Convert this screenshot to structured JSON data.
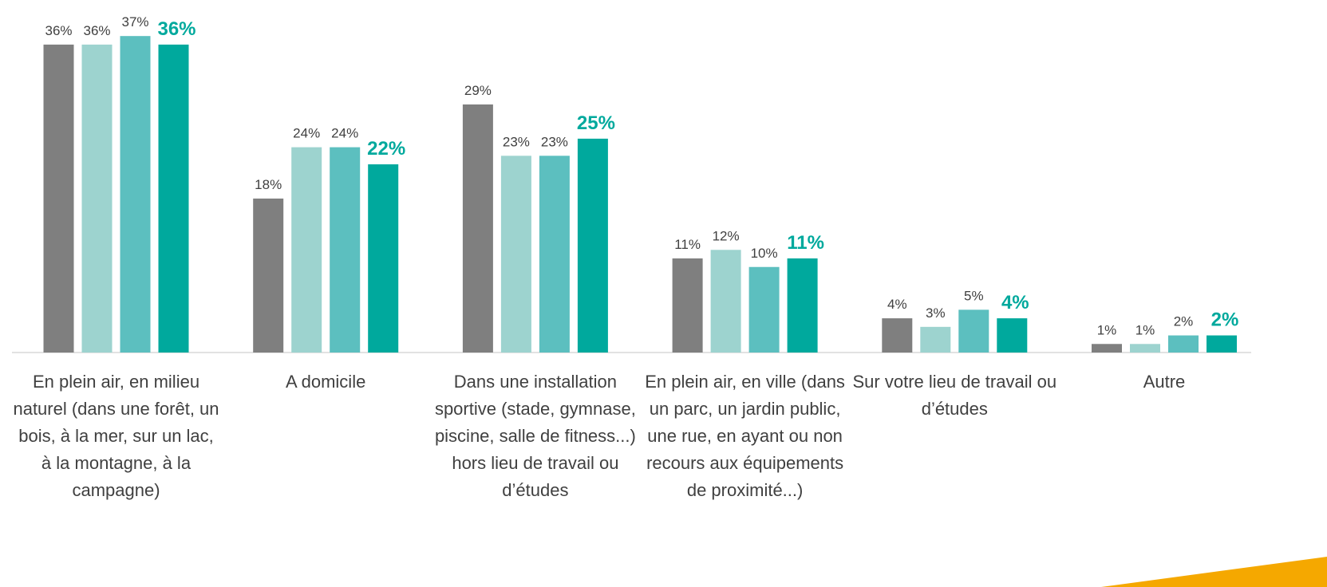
{
  "chart_data": {
    "type": "bar",
    "categories": [
      "En plein air, en milieu naturel (dans une forêt, un bois, à la mer, sur un lac, à la montagne, à la campagne)",
      "A domicile",
      "Dans une installation sportive (stade, gymnase, piscine, salle de fitness...) hors lieu de travail ou d’études",
      "En plein air, en ville (dans un parc, un jardin public, une rue, en ayant ou non recours aux équipements de proximité...)",
      "Sur votre lieu de travail ou d’études",
      "Autre"
    ],
    "series": [
      {
        "color": "#7f7f7f",
        "values": [
          36,
          18,
          29,
          11,
          4,
          1
        ],
        "value_labels": [
          "36%",
          "18%",
          "29%",
          "11%",
          "4%",
          "1%"
        ]
      },
      {
        "color": "#9dd3cf",
        "values": [
          36,
          24,
          23,
          12,
          3,
          1
        ],
        "value_labels": [
          "36%",
          "24%",
          "23%",
          "12%",
          "3%",
          "1%"
        ]
      },
      {
        "color": "#5cbfbf",
        "values": [
          37,
          24,
          23,
          10,
          5,
          2
        ],
        "value_labels": [
          "37%",
          "24%",
          "23%",
          "10%",
          "5%",
          "2%"
        ]
      },
      {
        "color": "#00a99d",
        "values": [
          36,
          22,
          25,
          11,
          4,
          2
        ],
        "value_labels": [
          "36%",
          "22%",
          "25%",
          "11%",
          "4%",
          "2%"
        ]
      }
    ],
    "ylim": [
      0,
      40
    ]
  }
}
